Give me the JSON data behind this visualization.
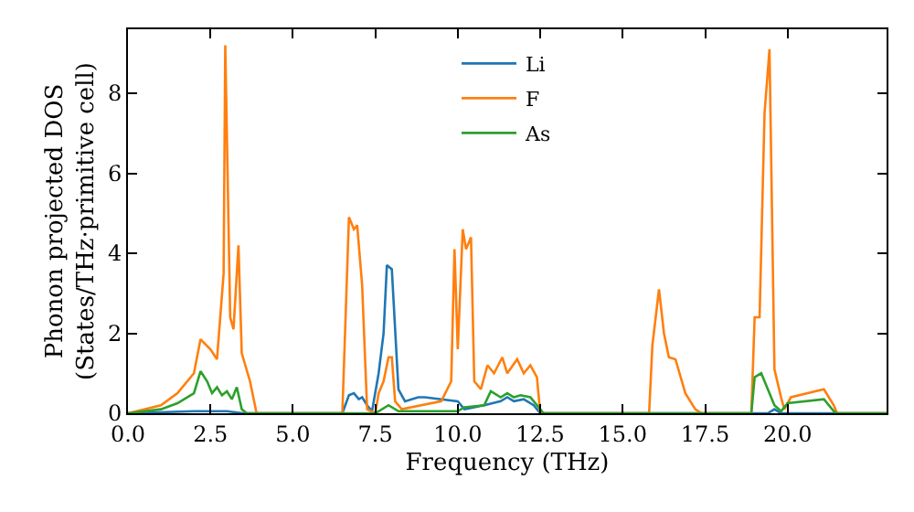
{
  "chart_data": {
    "type": "line",
    "xlabel": "Frequency (THz)",
    "ylabel": "Phonon projected DOS\n(States/THz·primitive cell)",
    "xlim": [
      0,
      23
    ],
    "ylim": [
      0,
      9.6
    ],
    "xticks": [
      {
        "value": 0,
        "label": "0.0"
      },
      2.5,
      {
        "value": 5,
        "label": "5.0"
      },
      7.5,
      {
        "value": 10,
        "label": "10.0"
      },
      12.5,
      {
        "value": 15,
        "label": "15.0"
      },
      17.5,
      {
        "value": 20,
        "label": "20.0"
      }
    ],
    "yticks": [
      0,
      2,
      4,
      6,
      8
    ],
    "legend": "top",
    "marker": "none",
    "line_style": "solid",
    "series": [
      {
        "name": "Li",
        "color": "#1f77b4",
        "x": [
          0,
          2,
          2.5,
          3,
          3.5,
          6.5,
          6.7,
          6.85,
          7.0,
          7.1,
          7.25,
          7.4,
          7.6,
          7.75,
          7.85,
          8.0,
          8.2,
          8.4,
          8.8,
          9.0,
          10.0,
          10.2,
          10.8,
          11.3,
          11.5,
          11.7,
          12.0,
          12.3,
          12.5,
          19.4,
          19.6,
          19.8,
          23
        ],
        "values": [
          0,
          0.05,
          0.05,
          0.05,
          0,
          0,
          0.45,
          0.5,
          0.35,
          0.4,
          0.2,
          0.05,
          1.0,
          2.0,
          3.7,
          3.6,
          0.6,
          0.3,
          0.4,
          0.4,
          0.3,
          0.1,
          0.2,
          0.3,
          0.4,
          0.3,
          0.35,
          0.2,
          0,
          0,
          0.1,
          0,
          0
        ]
      },
      {
        "name": "F",
        "color": "#ff7f0e",
        "x": [
          0,
          1,
          1.5,
          2,
          2.2,
          2.5,
          2.7,
          2.9,
          2.95,
          3.1,
          3.2,
          3.35,
          3.45,
          3.7,
          3.9,
          6.5,
          6.7,
          6.85,
          6.95,
          7.1,
          7.25,
          7.5,
          7.6,
          7.75,
          7.9,
          8.0,
          8.1,
          8.3,
          9.5,
          9.8,
          9.9,
          10.0,
          10.15,
          10.25,
          10.4,
          10.5,
          10.7,
          10.9,
          11.1,
          11.35,
          11.5,
          11.8,
          12.0,
          12.2,
          12.4,
          12.5,
          15.8,
          15.9,
          16.1,
          16.25,
          16.4,
          16.6,
          16.9,
          17.2,
          17.4,
          18.9,
          19.0,
          19.15,
          19.3,
          19.45,
          19.6,
          19.8,
          19.9,
          20.1,
          21.1,
          21.4,
          21.5,
          23
        ],
        "values": [
          0,
          0.2,
          0.5,
          1.0,
          1.85,
          1.6,
          1.35,
          3.5,
          9.2,
          2.4,
          2.1,
          4.2,
          1.5,
          0.8,
          0,
          0,
          4.9,
          4.6,
          4.7,
          3.2,
          0.1,
          0,
          0.5,
          0.8,
          1.4,
          1.4,
          0.3,
          0.1,
          0.3,
          0.8,
          4.1,
          1.6,
          4.6,
          4.1,
          4.4,
          0.8,
          0.6,
          1.2,
          1.0,
          1.4,
          1.0,
          1.35,
          1.0,
          1.2,
          0.9,
          0,
          0,
          1.7,
          3.1,
          2.0,
          1.4,
          1.35,
          0.5,
          0.1,
          0,
          0,
          2.4,
          2.4,
          7.5,
          9.1,
          1.1,
          0.4,
          0.1,
          0.4,
          0.6,
          0.2,
          0,
          0
        ]
      },
      {
        "name": "As",
        "color": "#2ca02c",
        "x": [
          0,
          1,
          1.5,
          2,
          2.2,
          2.4,
          2.55,
          2.7,
          2.85,
          3.0,
          3.15,
          3.3,
          3.45,
          3.6,
          7.5,
          7.9,
          8.2,
          10.0,
          10.2,
          10.8,
          11.0,
          11.3,
          11.5,
          11.7,
          11.9,
          12.2,
          12.5,
          12.6,
          18.9,
          19.0,
          19.2,
          19.4,
          19.6,
          19.8,
          20.0,
          21.1,
          21.4,
          21.5,
          23
        ],
        "values": [
          0,
          0.1,
          0.25,
          0.5,
          1.05,
          0.8,
          0.5,
          0.65,
          0.45,
          0.55,
          0.35,
          0.65,
          0.1,
          0,
          0,
          0.2,
          0.05,
          0.05,
          0.15,
          0.2,
          0.55,
          0.4,
          0.5,
          0.4,
          0.45,
          0.4,
          0.1,
          0,
          0,
          0.9,
          1.0,
          0.6,
          0.2,
          0.05,
          0.25,
          0.35,
          0.05,
          0,
          0
        ]
      }
    ]
  }
}
